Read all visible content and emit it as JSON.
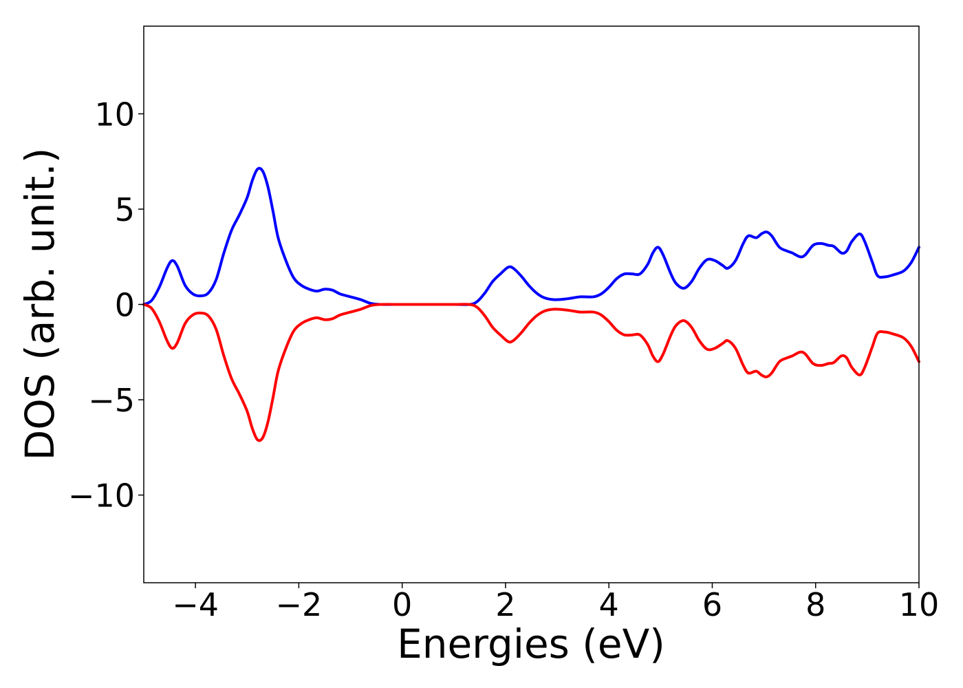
{
  "chart_data": {
    "type": "line",
    "title": "",
    "xlabel": "Energies (eV)",
    "ylabel": "DOS (arb. unit.)",
    "xlim": [
      -5,
      10
    ],
    "ylim": [
      -14.6,
      14.6
    ],
    "grid": false,
    "legend": "none",
    "x_ticks": [
      -4,
      -2,
      0,
      2,
      4,
      6,
      8,
      10
    ],
    "x_tick_labels": [
      "−4",
      "−2",
      "0",
      "2",
      "4",
      "6",
      "8",
      "10"
    ],
    "y_ticks": [
      10,
      5,
      0,
      -5,
      -10
    ],
    "y_tick_labels": [
      "10",
      "5",
      "0",
      "−5",
      "−10"
    ],
    "series": [
      {
        "color": "#0000ff",
        "points": [
          [
            -5.0,
            0.0
          ],
          [
            -4.85,
            0.2
          ],
          [
            -4.7,
            0.9
          ],
          [
            -4.55,
            1.9
          ],
          [
            -4.45,
            2.3
          ],
          [
            -4.35,
            2.0
          ],
          [
            -4.2,
            1.0
          ],
          [
            -4.05,
            0.55
          ],
          [
            -3.9,
            0.45
          ],
          [
            -3.75,
            0.6
          ],
          [
            -3.6,
            1.3
          ],
          [
            -3.45,
            2.7
          ],
          [
            -3.3,
            3.9
          ],
          [
            -3.15,
            4.7
          ],
          [
            -3.0,
            5.6
          ],
          [
            -2.9,
            6.5
          ],
          [
            -2.8,
            7.1
          ],
          [
            -2.7,
            7.0
          ],
          [
            -2.6,
            6.2
          ],
          [
            -2.5,
            4.9
          ],
          [
            -2.4,
            3.5
          ],
          [
            -2.25,
            2.3
          ],
          [
            -2.1,
            1.4
          ],
          [
            -1.95,
            1.0
          ],
          [
            -1.8,
            0.8
          ],
          [
            -1.65,
            0.7
          ],
          [
            -1.5,
            0.8
          ],
          [
            -1.35,
            0.75
          ],
          [
            -1.2,
            0.55
          ],
          [
            -1.0,
            0.4
          ],
          [
            -0.8,
            0.25
          ],
          [
            -0.6,
            0.05
          ],
          [
            -0.4,
            0.0
          ],
          [
            0.0,
            0.0
          ],
          [
            0.5,
            0.0
          ],
          [
            1.0,
            0.0
          ],
          [
            1.3,
            0.0
          ],
          [
            1.45,
            0.15
          ],
          [
            1.6,
            0.6
          ],
          [
            1.75,
            1.2
          ],
          [
            1.9,
            1.6
          ],
          [
            2.05,
            1.95
          ],
          [
            2.15,
            1.9
          ],
          [
            2.3,
            1.5
          ],
          [
            2.45,
            1.0
          ],
          [
            2.6,
            0.6
          ],
          [
            2.75,
            0.35
          ],
          [
            2.95,
            0.25
          ],
          [
            3.2,
            0.3
          ],
          [
            3.45,
            0.4
          ],
          [
            3.7,
            0.4
          ],
          [
            3.85,
            0.55
          ],
          [
            4.0,
            0.9
          ],
          [
            4.15,
            1.35
          ],
          [
            4.3,
            1.6
          ],
          [
            4.45,
            1.6
          ],
          [
            4.6,
            1.6
          ],
          [
            4.75,
            2.1
          ],
          [
            4.85,
            2.7
          ],
          [
            4.95,
            3.0
          ],
          [
            5.05,
            2.6
          ],
          [
            5.2,
            1.6
          ],
          [
            5.3,
            1.1
          ],
          [
            5.45,
            0.85
          ],
          [
            5.6,
            1.2
          ],
          [
            5.75,
            1.9
          ],
          [
            5.9,
            2.35
          ],
          [
            6.05,
            2.3
          ],
          [
            6.2,
            2.05
          ],
          [
            6.3,
            1.9
          ],
          [
            6.45,
            2.3
          ],
          [
            6.6,
            3.2
          ],
          [
            6.7,
            3.6
          ],
          [
            6.85,
            3.5
          ],
          [
            6.95,
            3.7
          ],
          [
            7.05,
            3.8
          ],
          [
            7.15,
            3.6
          ],
          [
            7.3,
            3.0
          ],
          [
            7.45,
            2.8
          ],
          [
            7.55,
            2.7
          ],
          [
            7.7,
            2.5
          ],
          [
            7.8,
            2.6
          ],
          [
            7.95,
            3.1
          ],
          [
            8.1,
            3.2
          ],
          [
            8.25,
            3.1
          ],
          [
            8.35,
            3.05
          ],
          [
            8.5,
            2.7
          ],
          [
            8.6,
            2.8
          ],
          [
            8.7,
            3.3
          ],
          [
            8.85,
            3.7
          ],
          [
            8.95,
            3.3
          ],
          [
            9.1,
            2.2
          ],
          [
            9.2,
            1.5
          ],
          [
            9.35,
            1.45
          ],
          [
            9.5,
            1.55
          ],
          [
            9.7,
            1.75
          ],
          [
            9.85,
            2.2
          ],
          [
            10.0,
            3.0
          ]
        ]
      },
      {
        "color": "#ff0000",
        "points": [
          [
            -5.0,
            0.0
          ],
          [
            -4.85,
            -0.2
          ],
          [
            -4.7,
            -0.9
          ],
          [
            -4.55,
            -1.9
          ],
          [
            -4.45,
            -2.3
          ],
          [
            -4.35,
            -2.0
          ],
          [
            -4.2,
            -1.0
          ],
          [
            -4.05,
            -0.55
          ],
          [
            -3.9,
            -0.45
          ],
          [
            -3.75,
            -0.6
          ],
          [
            -3.6,
            -1.3
          ],
          [
            -3.45,
            -2.7
          ],
          [
            -3.3,
            -3.9
          ],
          [
            -3.15,
            -4.7
          ],
          [
            -3.0,
            -5.6
          ],
          [
            -2.9,
            -6.5
          ],
          [
            -2.8,
            -7.1
          ],
          [
            -2.7,
            -7.0
          ],
          [
            -2.6,
            -6.2
          ],
          [
            -2.5,
            -4.9
          ],
          [
            -2.4,
            -3.5
          ],
          [
            -2.25,
            -2.3
          ],
          [
            -2.1,
            -1.4
          ],
          [
            -1.95,
            -1.0
          ],
          [
            -1.8,
            -0.8
          ],
          [
            -1.65,
            -0.7
          ],
          [
            -1.5,
            -0.8
          ],
          [
            -1.35,
            -0.75
          ],
          [
            -1.2,
            -0.55
          ],
          [
            -1.0,
            -0.4
          ],
          [
            -0.8,
            -0.25
          ],
          [
            -0.6,
            -0.05
          ],
          [
            -0.4,
            0.0
          ],
          [
            0.0,
            0.0
          ],
          [
            0.5,
            0.0
          ],
          [
            1.0,
            0.0
          ],
          [
            1.3,
            0.0
          ],
          [
            1.45,
            -0.15
          ],
          [
            1.6,
            -0.6
          ],
          [
            1.75,
            -1.2
          ],
          [
            1.9,
            -1.6
          ],
          [
            2.05,
            -1.95
          ],
          [
            2.15,
            -1.9
          ],
          [
            2.3,
            -1.5
          ],
          [
            2.45,
            -1.0
          ],
          [
            2.6,
            -0.6
          ],
          [
            2.75,
            -0.35
          ],
          [
            2.95,
            -0.25
          ],
          [
            3.2,
            -0.3
          ],
          [
            3.45,
            -0.4
          ],
          [
            3.7,
            -0.4
          ],
          [
            3.85,
            -0.55
          ],
          [
            4.0,
            -0.9
          ],
          [
            4.15,
            -1.35
          ],
          [
            4.3,
            -1.6
          ],
          [
            4.45,
            -1.6
          ],
          [
            4.6,
            -1.6
          ],
          [
            4.75,
            -2.1
          ],
          [
            4.85,
            -2.7
          ],
          [
            4.95,
            -3.0
          ],
          [
            5.05,
            -2.6
          ],
          [
            5.2,
            -1.6
          ],
          [
            5.3,
            -1.1
          ],
          [
            5.45,
            -0.85
          ],
          [
            5.6,
            -1.2
          ],
          [
            5.75,
            -1.9
          ],
          [
            5.9,
            -2.35
          ],
          [
            6.05,
            -2.3
          ],
          [
            6.2,
            -2.05
          ],
          [
            6.3,
            -1.9
          ],
          [
            6.45,
            -2.3
          ],
          [
            6.6,
            -3.2
          ],
          [
            6.7,
            -3.6
          ],
          [
            6.85,
            -3.5
          ],
          [
            6.95,
            -3.7
          ],
          [
            7.05,
            -3.8
          ],
          [
            7.15,
            -3.6
          ],
          [
            7.3,
            -3.0
          ],
          [
            7.45,
            -2.8
          ],
          [
            7.55,
            -2.7
          ],
          [
            7.7,
            -2.5
          ],
          [
            7.8,
            -2.6
          ],
          [
            7.95,
            -3.1
          ],
          [
            8.1,
            -3.2
          ],
          [
            8.25,
            -3.1
          ],
          [
            8.35,
            -3.05
          ],
          [
            8.5,
            -2.7
          ],
          [
            8.6,
            -2.8
          ],
          [
            8.7,
            -3.3
          ],
          [
            8.85,
            -3.7
          ],
          [
            8.95,
            -3.3
          ],
          [
            9.1,
            -2.2
          ],
          [
            9.2,
            -1.5
          ],
          [
            9.35,
            -1.45
          ],
          [
            9.5,
            -1.55
          ],
          [
            9.7,
            -1.75
          ],
          [
            9.85,
            -2.2
          ],
          [
            10.0,
            -3.0
          ]
        ]
      }
    ]
  }
}
